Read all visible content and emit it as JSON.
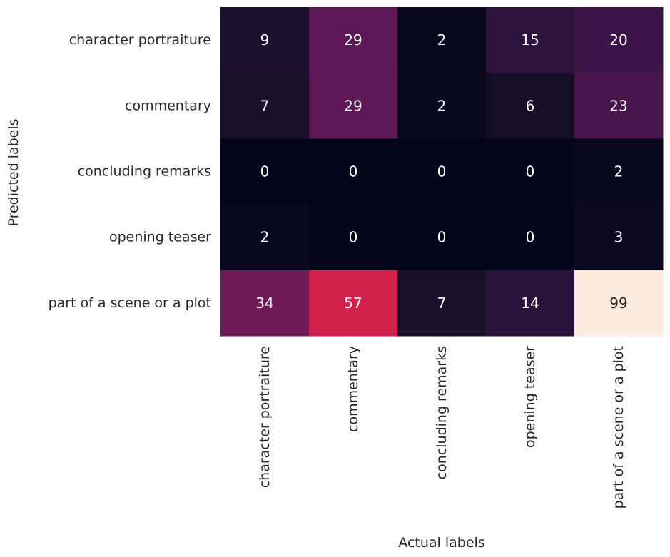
{
  "chart_data": {
    "type": "heatmap",
    "title": "",
    "xlabel": "Actual labels",
    "ylabel": "Predicted labels",
    "x_categories": [
      "character portraiture",
      "commentary",
      "concluding remarks",
      "opening teaser",
      "part of a scene or a plot"
    ],
    "y_categories": [
      "character portraiture",
      "commentary",
      "concluding remarks",
      "opening teaser",
      "part of a scene or a plot"
    ],
    "values": [
      [
        9,
        29,
        2,
        15,
        20
      ],
      [
        7,
        29,
        2,
        6,
        23
      ],
      [
        0,
        0,
        0,
        0,
        2
      ],
      [
        2,
        0,
        0,
        0,
        3
      ],
      [
        34,
        57,
        7,
        14,
        99
      ]
    ],
    "value_range": [
      0,
      99
    ],
    "colormap": "rocket",
    "annotations": true,
    "colorbar": false
  }
}
